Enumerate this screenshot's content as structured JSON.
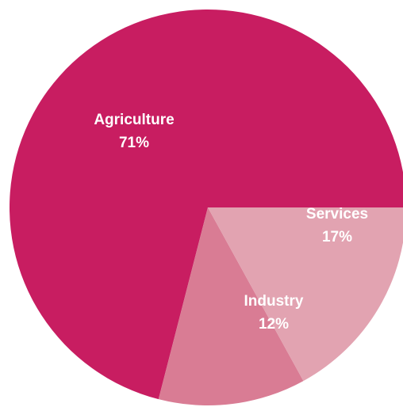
{
  "chart_data": {
    "type": "pie",
    "title": "",
    "slices": [
      {
        "label": "Agriculture",
        "value": 71,
        "value_label": "71%",
        "color": "#C81D61"
      },
      {
        "label": "Services",
        "value": 17,
        "value_label": "17%",
        "color": "#E2A3B1"
      },
      {
        "label": "Industry",
        "value": 12,
        "value_label": "12%",
        "color": "#D97C94"
      }
    ],
    "start_angle": "3 o'clock",
    "direction": "counterclockwise",
    "legend": "none"
  }
}
